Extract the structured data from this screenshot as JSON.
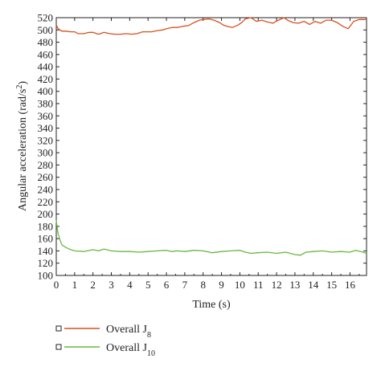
{
  "chart_data": {
    "type": "line",
    "title": "",
    "xlabel": "Time (s)",
    "ylabel_parts": {
      "main": "Angular acceleration (rad/s",
      "sup": "2",
      "close": ")"
    },
    "xlim": [
      0,
      16.9
    ],
    "ylim": [
      100,
      520
    ],
    "xticks": [
      0,
      1,
      2,
      3,
      4,
      5,
      6,
      7,
      8,
      9,
      10,
      11,
      12,
      13,
      14,
      15,
      16
    ],
    "yticks": [
      100,
      120,
      140,
      160,
      180,
      200,
      220,
      240,
      260,
      280,
      300,
      320,
      340,
      360,
      380,
      400,
      420,
      440,
      460,
      480,
      500,
      520
    ],
    "grid": false,
    "legend_position": "bottom-left, below plot",
    "series": [
      {
        "name_main": "Overall J",
        "name_sub": "8",
        "color": "#d9501e",
        "x": [
          0,
          0.1,
          0.3,
          0.5,
          0.8,
          1,
          1.2,
          1.5,
          1.8,
          2,
          2.3,
          2.6,
          2.9,
          3.2,
          3.5,
          3.8,
          4.1,
          4.4,
          4.7,
          5,
          5.2,
          5.5,
          5.8,
          6,
          6.3,
          6.6,
          6.9,
          7.2,
          7.5,
          7.8,
          8,
          8.3,
          8.6,
          8.9,
          9.1,
          9.3,
          9.6,
          9.9,
          10.1,
          10.3,
          10.6,
          10.9,
          11.2,
          11.5,
          11.8,
          12.1,
          12.4,
          12.6,
          12.9,
          13.2,
          13.5,
          13.8,
          14.1,
          14.4,
          14.7,
          15,
          15.3,
          15.6,
          15.9,
          16.2,
          16.5,
          16.9
        ],
        "y": [
          508,
          502,
          498,
          498,
          497,
          497,
          494,
          494,
          496,
          496,
          493,
          496,
          494,
          493,
          493,
          494,
          493,
          494,
          497,
          497,
          497,
          499,
          500,
          502,
          504,
          504,
          506,
          507,
          512,
          516,
          517,
          518,
          516,
          512,
          508,
          506,
          504,
          508,
          512,
          518,
          520,
          514,
          516,
          513,
          511,
          516,
          520,
          516,
          512,
          511,
          514,
          509,
          514,
          511,
          516,
          516,
          512,
          506,
          502,
          514,
          517,
          517
        ]
      },
      {
        "name_main": "Overall J",
        "name_sub": "10",
        "color": "#6ab83e",
        "x": [
          0,
          0.05,
          0.1,
          0.2,
          0.3,
          0.5,
          0.7,
          1,
          1.5,
          2,
          2.3,
          2.6,
          3,
          3.5,
          4,
          4.5,
          5,
          5.5,
          6,
          6.3,
          6.6,
          7,
          7.5,
          8,
          8.5,
          9,
          9.5,
          10,
          10.3,
          10.6,
          11,
          11.5,
          12,
          12.5,
          13,
          13.3,
          13.6,
          14,
          14.5,
          15,
          15.5,
          16,
          16.3,
          16.6,
          16.9
        ],
        "y": [
          190,
          178,
          168,
          158,
          150,
          146,
          143,
          140,
          139,
          142,
          140,
          143,
          140,
          139,
          139,
          138,
          139,
          140,
          141,
          139,
          140,
          139,
          141,
          140,
          137,
          139,
          140,
          141,
          138,
          136,
          137,
          138,
          136,
          138,
          134,
          133,
          138,
          139,
          140,
          138,
          139,
          138,
          141,
          139,
          136
        ]
      }
    ]
  }
}
